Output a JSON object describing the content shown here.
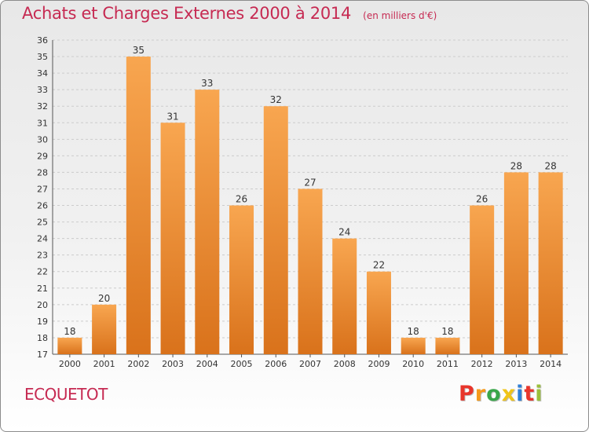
{
  "header": {
    "title": "Achats et Charges Externes 2000 à 2014",
    "subtitle": "(en milliers d'€)"
  },
  "footer": {
    "location": "ECQUETOT",
    "brand": "Proxiti",
    "brand_colors": [
      "#e8352b",
      "#f59a1b",
      "#3aa64a",
      "#f0c419",
      "#2f7fd6",
      "#e8352b",
      "#9bc03a"
    ]
  },
  "colors": {
    "bar_top": "#f8a650",
    "bar_bottom": "#d9721b",
    "grid": "#cccccc",
    "title": "#c62a52"
  },
  "chart_data": {
    "type": "bar",
    "categories": [
      "2000",
      "2001",
      "2002",
      "2003",
      "2004",
      "2005",
      "2006",
      "2007",
      "2008",
      "2009",
      "2010",
      "2011",
      "2012",
      "2013",
      "2014"
    ],
    "values": [
      18,
      20,
      35,
      31,
      33,
      26,
      32,
      27,
      24,
      22,
      18,
      18,
      26,
      28,
      28
    ],
    "title": "Achats et Charges Externes 2000 à 2014",
    "subtitle": "(en milliers d'€)",
    "xlabel": "",
    "ylabel": "",
    "ylim": [
      17,
      36
    ],
    "yticks": [
      17,
      18,
      19,
      20,
      21,
      22,
      23,
      24,
      25,
      26,
      27,
      28,
      29,
      30,
      31,
      32,
      33,
      34,
      35,
      36
    ],
    "grid": "horizontal dashed",
    "legend": "none"
  }
}
